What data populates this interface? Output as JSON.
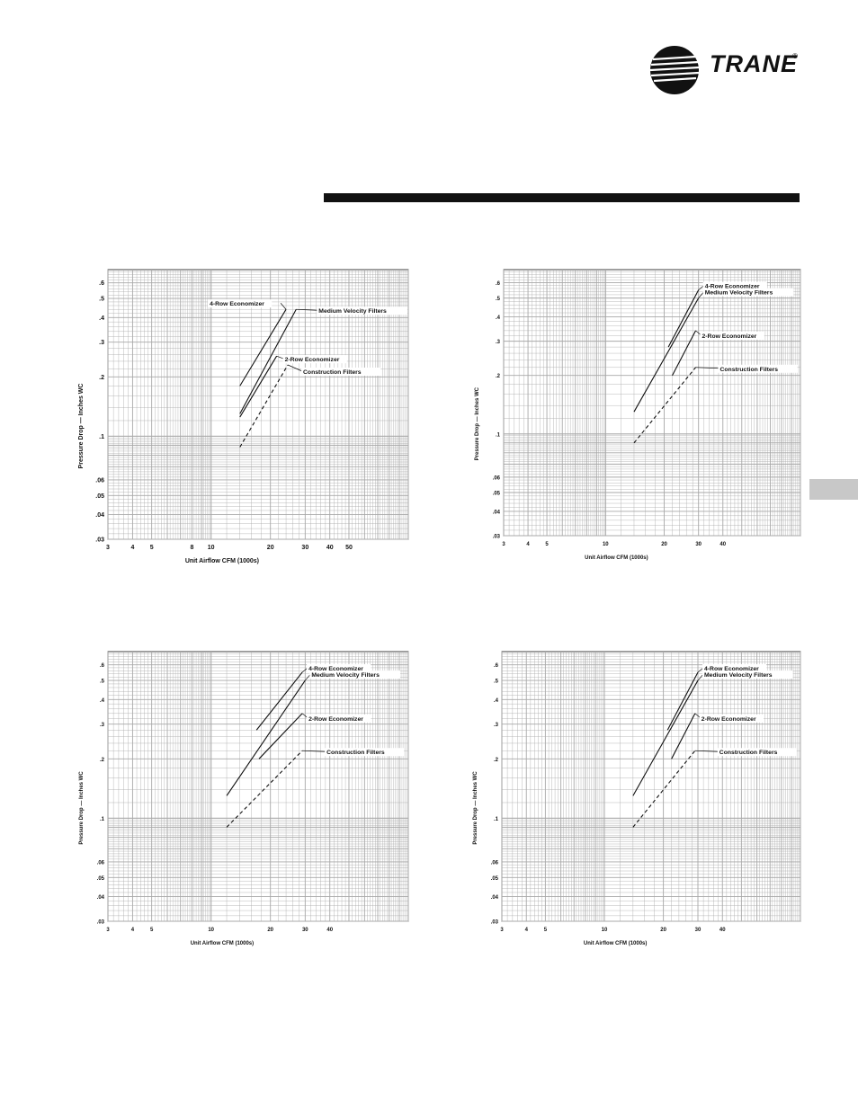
{
  "header": {
    "brand": "TRANE",
    "registered": "®",
    "colors": {
      "ink": "#111111",
      "grid": "#a8a8a8",
      "tab": "#c8c8c8"
    }
  },
  "chart_data": [
    {
      "type": "line",
      "xscale": "log",
      "yscale": "log",
      "xlim": [
        3,
        100
      ],
      "ylim": [
        0.03,
        0.7
      ],
      "xticks": [
        "3",
        "4",
        "5",
        "8",
        "10",
        "20",
        "30",
        "40",
        "50"
      ],
      "yticks": [
        ".6",
        ".5",
        ".4",
        ".3",
        ".2",
        ".1",
        ".06",
        ".05",
        ".04",
        ".03"
      ],
      "xlabel": "Unit Airflow CFM (1000s)",
      "ylabel": "Pressure Drop — Inches WC",
      "series": [
        {
          "name": "4-Row Economizer",
          "x": [
            14,
            24
          ],
          "y": [
            0.18,
            0.44
          ]
        },
        {
          "name": "Medium Velocity Filters",
          "x": [
            14,
            27
          ],
          "y": [
            0.13,
            0.44
          ]
        },
        {
          "name": "2-Row Economizer",
          "x": [
            14,
            21.5
          ],
          "y": [
            0.125,
            0.255
          ]
        },
        {
          "name": "Construction Filters",
          "x": [
            14,
            24.5
          ],
          "y": [
            0.088,
            0.23
          ]
        }
      ]
    },
    {
      "type": "line",
      "xscale": "log",
      "yscale": "log",
      "xlim": [
        3,
        100
      ],
      "ylim": [
        0.03,
        0.7
      ],
      "xticks": [
        "3",
        "4",
        "5",
        "10",
        "20",
        "30",
        "40"
      ],
      "yticks": [
        ".6",
        ".5",
        ".4",
        ".3",
        ".2",
        ".1",
        ".06",
        ".05",
        ".04",
        ".03"
      ],
      "xlabel": "Unit Airflow CFM (1000s)",
      "ylabel": "Pressure Drop — Inches WC",
      "series": [
        {
          "name": "4-Row Economizer",
          "x": [
            21,
            30
          ],
          "y": [
            0.28,
            0.55
          ]
        },
        {
          "name": "Medium Velocity Filters",
          "x": [
            14,
            30
          ],
          "y": [
            0.13,
            0.5
          ]
        },
        {
          "name": "2-Row Economizer",
          "x": [
            22,
            29
          ],
          "y": [
            0.2,
            0.34
          ]
        },
        {
          "name": "Construction Filters",
          "x": [
            14,
            29
          ],
          "y": [
            0.09,
            0.22
          ]
        }
      ]
    },
    {
      "type": "line",
      "xscale": "log",
      "yscale": "log",
      "xlim": [
        3,
        100
      ],
      "ylim": [
        0.03,
        0.7
      ],
      "xticks": [
        "3",
        "4",
        "5",
        "10",
        "20",
        "30",
        "40"
      ],
      "yticks": [
        ".6",
        ".5",
        ".4",
        ".3",
        ".2",
        ".1",
        ".06",
        ".05",
        ".04",
        ".03"
      ],
      "xlabel": "Unit Airflow CFM (1000s)",
      "ylabel": "Pressure Drop — Inches WC",
      "series": [
        {
          "name": "4-Row Economizer",
          "x": [
            17,
            29
          ],
          "y": [
            0.28,
            0.55
          ]
        },
        {
          "name": "Medium Velocity Filters",
          "x": [
            12,
            30
          ],
          "y": [
            0.13,
            0.5
          ]
        },
        {
          "name": "2-Row Economizer",
          "x": [
            17.5,
            29
          ],
          "y": [
            0.2,
            0.34
          ]
        },
        {
          "name": "Construction Filters",
          "x": [
            12,
            29
          ],
          "y": [
            0.09,
            0.22
          ]
        }
      ]
    },
    {
      "type": "line",
      "xscale": "log",
      "yscale": "log",
      "xlim": [
        3,
        100
      ],
      "ylim": [
        0.03,
        0.7
      ],
      "xticks": [
        "3",
        "4",
        "5",
        "10",
        "20",
        "30",
        "40"
      ],
      "yticks": [
        ".6",
        ".5",
        ".4",
        ".3",
        ".2",
        ".1",
        ".06",
        ".05",
        ".04",
        ".03"
      ],
      "xlabel": "Unit Airflow CFM (1000s)",
      "ylabel": "Pressure Drop — Inches WC",
      "series": [
        {
          "name": "4-Row Economizer",
          "x": [
            21,
            30
          ],
          "y": [
            0.28,
            0.55
          ]
        },
        {
          "name": "Medium Velocity Filters",
          "x": [
            14,
            30
          ],
          "y": [
            0.13,
            0.5
          ]
        },
        {
          "name": "2-Row Economizer",
          "x": [
            22,
            29
          ],
          "y": [
            0.2,
            0.34
          ]
        },
        {
          "name": "Construction Filters",
          "x": [
            14,
            29
          ],
          "y": [
            0.09,
            0.22
          ]
        }
      ]
    }
  ]
}
